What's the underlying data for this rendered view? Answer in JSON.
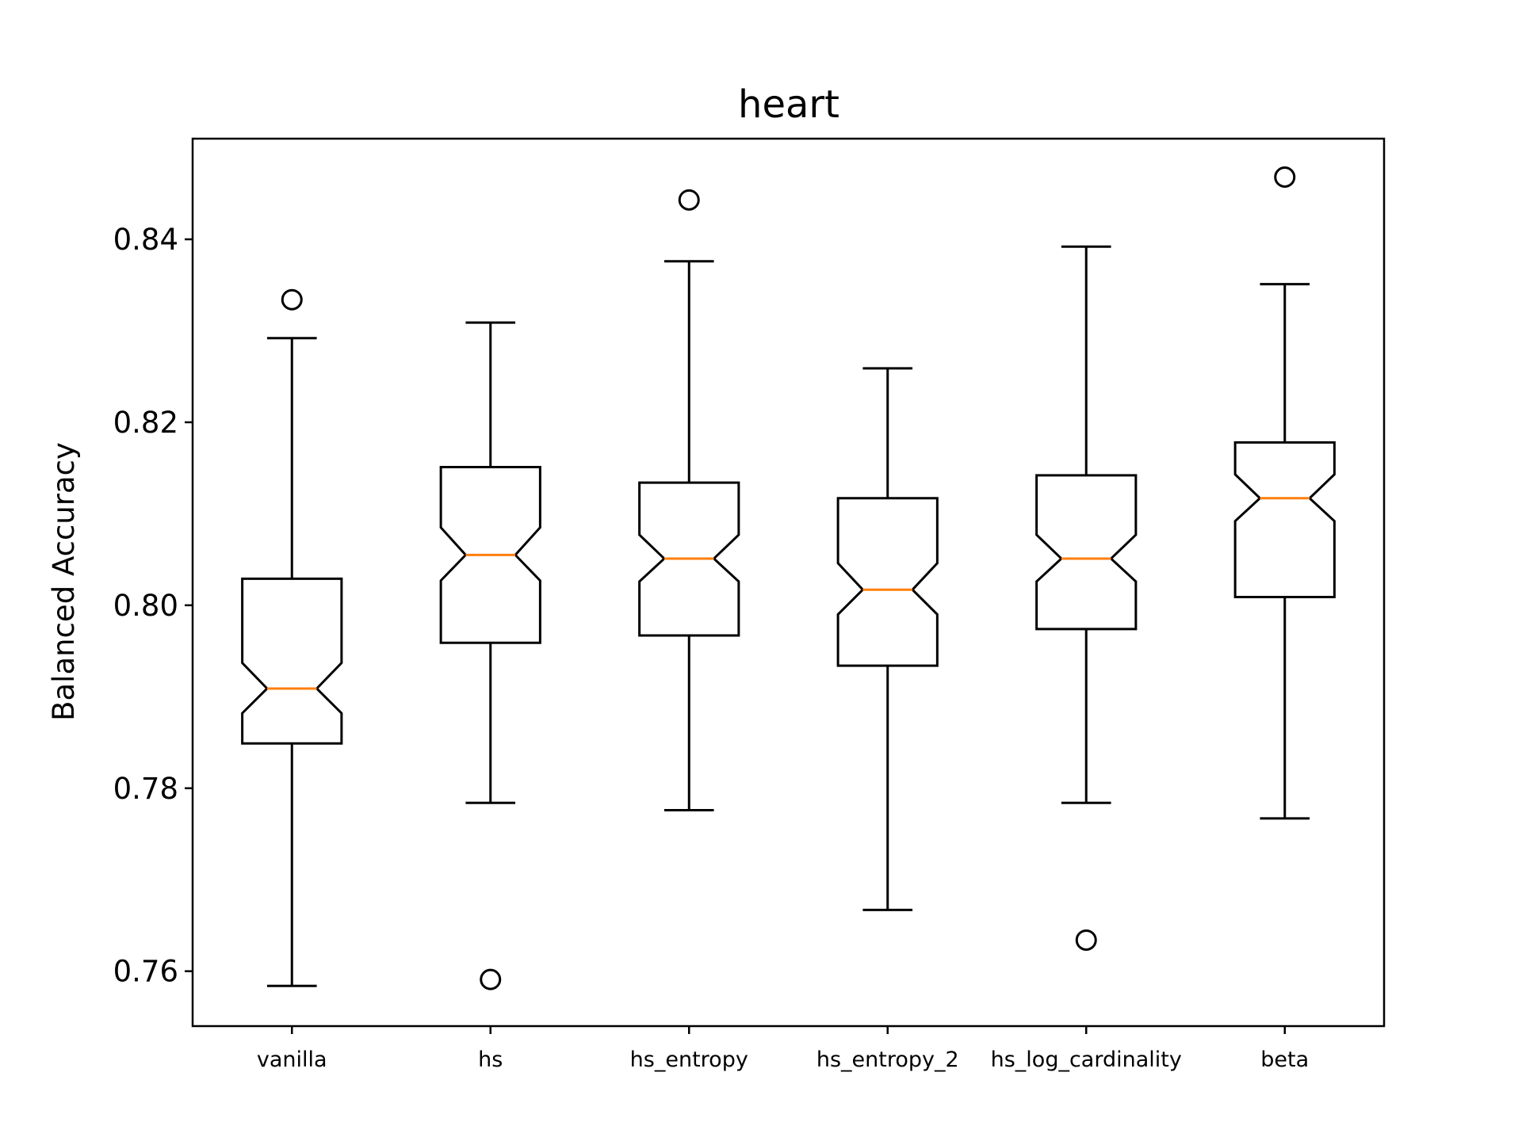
{
  "chart_data": {
    "type": "boxplot",
    "title": "heart",
    "xlabel": "",
    "ylabel": "Balanced Accuracy",
    "ylim": [
      0.754,
      0.851
    ],
    "yticks": [
      0.76,
      0.78,
      0.8,
      0.82,
      0.84
    ],
    "ytick_labels": [
      "0.76",
      "0.78",
      "0.80",
      "0.82",
      "0.84"
    ],
    "notched": true,
    "grid": false,
    "median_color": "#ff7f0e",
    "categories": [
      "vanilla",
      "hs",
      "hs_entropy",
      "hs_entropy_2",
      "hs_log_cardinality",
      "beta"
    ],
    "boxes": [
      {
        "label": "vanilla",
        "whisker_low": 0.7584,
        "q1": 0.7849,
        "median": 0.7909,
        "q3": 0.8029,
        "whisker_high": 0.8292,
        "notch_low": 0.7882,
        "notch_high": 0.7937,
        "fliers": [
          0.8334
        ]
      },
      {
        "label": "hs",
        "whisker_low": 0.7784,
        "q1": 0.7959,
        "median": 0.8055,
        "q3": 0.8151,
        "whisker_high": 0.8309,
        "notch_low": 0.8027,
        "notch_high": 0.8085,
        "fliers": [
          0.7591
        ]
      },
      {
        "label": "hs_entropy",
        "whisker_low": 0.7776,
        "q1": 0.7967,
        "median": 0.8051,
        "q3": 0.8134,
        "whisker_high": 0.8376,
        "notch_low": 0.8026,
        "notch_high": 0.8077,
        "fliers": [
          0.8443
        ]
      },
      {
        "label": "hs_entropy_2",
        "whisker_low": 0.7667,
        "q1": 0.7934,
        "median": 0.8017,
        "q3": 0.8117,
        "whisker_high": 0.8259,
        "notch_low": 0.799,
        "notch_high": 0.8046,
        "fliers": []
      },
      {
        "label": "hs_log_cardinality",
        "whisker_low": 0.7784,
        "q1": 0.7974,
        "median": 0.8051,
        "q3": 0.8142,
        "whisker_high": 0.8392,
        "notch_low": 0.8026,
        "notch_high": 0.8077,
        "fliers": [
          0.7634
        ]
      },
      {
        "label": "beta",
        "whisker_low": 0.7767,
        "q1": 0.8009,
        "median": 0.8117,
        "q3": 0.8178,
        "whisker_high": 0.8351,
        "notch_low": 0.8092,
        "notch_high": 0.8143,
        "fliers": [
          0.8468
        ]
      }
    ]
  }
}
